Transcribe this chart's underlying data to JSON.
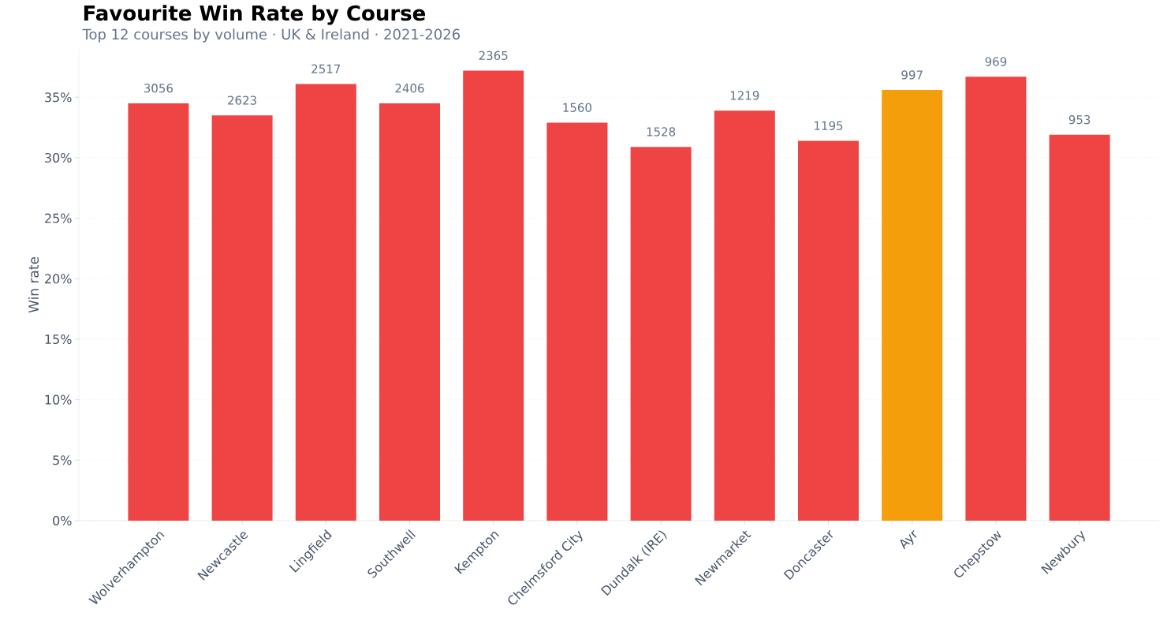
{
  "chart_data": {
    "type": "bar",
    "title": "Favourite Win Rate by Course",
    "subtitle": "Top 12 courses by volume · UK & Ireland · 2021-2026",
    "ylabel": "Win rate",
    "categories": [
      "Wolverhampton",
      "Newcastle",
      "Lingfield",
      "Southwell",
      "Kempton",
      "Chelmsford City",
      "Dundalk (IRE)",
      "Newmarket",
      "Doncaster",
      "Ayr",
      "Chepstow",
      "Newbury"
    ],
    "values": [
      34.5,
      33.5,
      36.1,
      34.5,
      37.2,
      32.9,
      30.9,
      33.9,
      31.4,
      35.6,
      36.7,
      31.9
    ],
    "colors": [
      "#ef4444",
      "#ef4444",
      "#ef4444",
      "#ef4444",
      "#ef4444",
      "#ef4444",
      "#ef4444",
      "#ef4444",
      "#ef4444",
      "#f59e0b",
      "#ef4444",
      "#ef4444"
    ],
    "annotations": [
      {
        "text": "3056",
        "x": "Wolverhampton",
        "y": 34.5
      },
      {
        "text": "2623",
        "x": "Newcastle",
        "y": 33.5
      },
      {
        "text": "2517",
        "x": "Lingfield",
        "y": 36.1
      },
      {
        "text": "2406",
        "x": "Southwell",
        "y": 34.5
      },
      {
        "text": "2365",
        "x": "Kempton",
        "y": 37.2
      },
      {
        "text": "1560",
        "x": "Chelmsford City",
        "y": 32.9
      },
      {
        "text": "1528",
        "x": "Dundalk (IRE)",
        "y": 30.9
      },
      {
        "text": "1219",
        "x": "Newmarket",
        "y": 33.9
      },
      {
        "text": "1195",
        "x": "Doncaster",
        "y": 31.4
      },
      {
        "text": "997",
        "x": "Ayr",
        "y": 35.6
      },
      {
        "text": "969",
        "x": "Chepstow",
        "y": 36.7
      },
      {
        "text": "953",
        "x": "Newbury",
        "y": 31.9
      }
    ],
    "ylim": [
      0,
      39
    ],
    "yticks": [
      {
        "value": 0,
        "label": "0%"
      },
      {
        "value": 5,
        "label": "5%"
      },
      {
        "value": 10,
        "label": "10%"
      },
      {
        "value": 15,
        "label": "15%"
      },
      {
        "value": 20,
        "label": "20%"
      },
      {
        "value": 25,
        "label": "25%"
      },
      {
        "value": 30,
        "label": "30%"
      },
      {
        "value": 35,
        "label": "35%"
      }
    ],
    "grid": "y"
  }
}
